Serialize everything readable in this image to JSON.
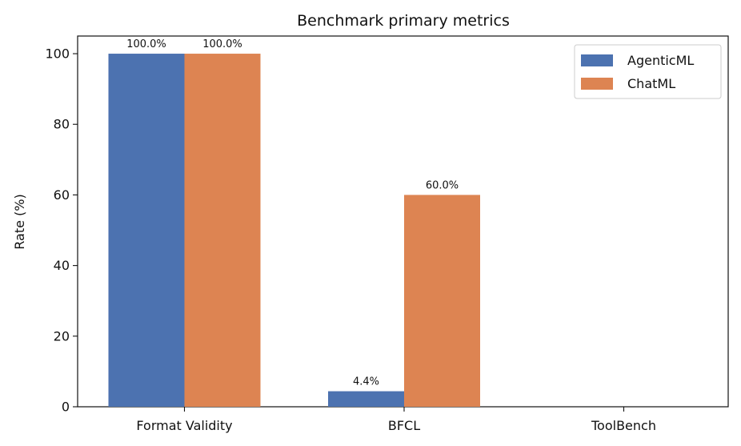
{
  "chart_data": {
    "type": "bar",
    "title": "Benchmark primary metrics",
    "xlabel": "",
    "ylabel": "Rate (%)",
    "categories": [
      "Format Validity",
      "BFCL",
      "ToolBench"
    ],
    "series": [
      {
        "name": "AgenticML",
        "color": "#4c72b0",
        "values": [
          100.0,
          4.4,
          0
        ],
        "labels": [
          "100.0%",
          "4.4%",
          ""
        ]
      },
      {
        "name": "ChatML",
        "color": "#dd8452",
        "values": [
          100.0,
          60.0,
          0
        ],
        "labels": [
          "100.0%",
          "60.0%",
          ""
        ]
      }
    ],
    "ylim": [
      0,
      105
    ],
    "yticks": [
      0,
      20,
      40,
      60,
      80,
      100
    ],
    "ytick_labels": [
      "0",
      "20",
      "40",
      "60",
      "80",
      "100"
    ],
    "grid": false,
    "legend_position": "top-right"
  }
}
